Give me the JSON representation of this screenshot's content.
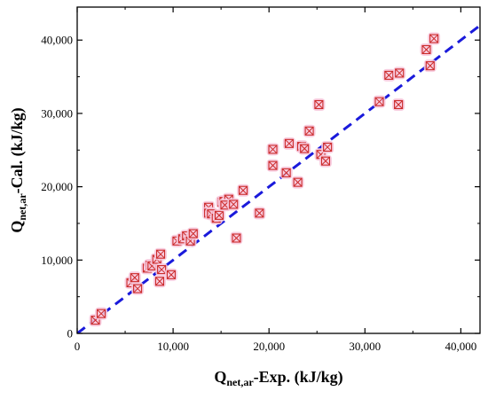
{
  "chart_data": {
    "type": "scatter",
    "xlabel": {
      "main": "Q",
      "sub": "net,ar",
      "rest": "-Exp. (kJ/kg)"
    },
    "ylabel": {
      "main": "Q",
      "sub": "net,ar",
      "rest": "-Cal. (kJ/kg)"
    },
    "xlim": [
      0,
      42000
    ],
    "ylim": [
      0,
      44500
    ],
    "xticks": [
      0,
      10000,
      20000,
      30000,
      40000
    ],
    "yticks": [
      0,
      10000,
      20000,
      30000,
      40000
    ],
    "xtick_labels": [
      "0",
      "10,000",
      "20,000",
      "30,000",
      "40,000"
    ],
    "ytick_labels": [
      "0",
      "10,000",
      "20,000",
      "30,000",
      "40,000"
    ],
    "grid": false,
    "reference_line": {
      "type": "y=x",
      "style": "dashed",
      "color": "#1a1adb"
    },
    "marker": {
      "shape": "boxed-x",
      "color": "#cc2b2b",
      "halo": "#f7c9dd"
    },
    "series": [
      {
        "points": [
          [
            1900,
            1800
          ],
          [
            2500,
            2700
          ],
          [
            5600,
            6900
          ],
          [
            6300,
            6100
          ],
          [
            6000,
            7600
          ],
          [
            7300,
            8900
          ],
          [
            7600,
            9300
          ],
          [
            7800,
            9200
          ],
          [
            8300,
            10100
          ],
          [
            8700,
            10800
          ],
          [
            8600,
            7100
          ],
          [
            8800,
            8700
          ],
          [
            9800,
            8000
          ],
          [
            10400,
            12600
          ],
          [
            11000,
            12900
          ],
          [
            11400,
            13300
          ],
          [
            11800,
            12600
          ],
          [
            12100,
            13600
          ],
          [
            13700,
            17200
          ],
          [
            13700,
            16400
          ],
          [
            14000,
            16300
          ],
          [
            14500,
            15700
          ],
          [
            14800,
            16100
          ],
          [
            15100,
            17900
          ],
          [
            15300,
            18000
          ],
          [
            15600,
            17700
          ],
          [
            15800,
            18300
          ],
          [
            15400,
            17500
          ],
          [
            16300,
            17600
          ],
          [
            16600,
            13000
          ],
          [
            17300,
            19500
          ],
          [
            19000,
            16400
          ],
          [
            20400,
            25100
          ],
          [
            20400,
            22900
          ],
          [
            21800,
            21900
          ],
          [
            22100,
            25900
          ],
          [
            23000,
            20600
          ],
          [
            23400,
            25500
          ],
          [
            23700,
            25200
          ],
          [
            24200,
            27600
          ],
          [
            25200,
            31200
          ],
          [
            25400,
            24400
          ],
          [
            25900,
            23500
          ],
          [
            26100,
            25400
          ],
          [
            31500,
            31600
          ],
          [
            32500,
            35200
          ],
          [
            33600,
            35500
          ],
          [
            33500,
            31200
          ],
          [
            36400,
            38700
          ],
          [
            36800,
            36500
          ],
          [
            37200,
            40200
          ]
        ]
      }
    ]
  }
}
